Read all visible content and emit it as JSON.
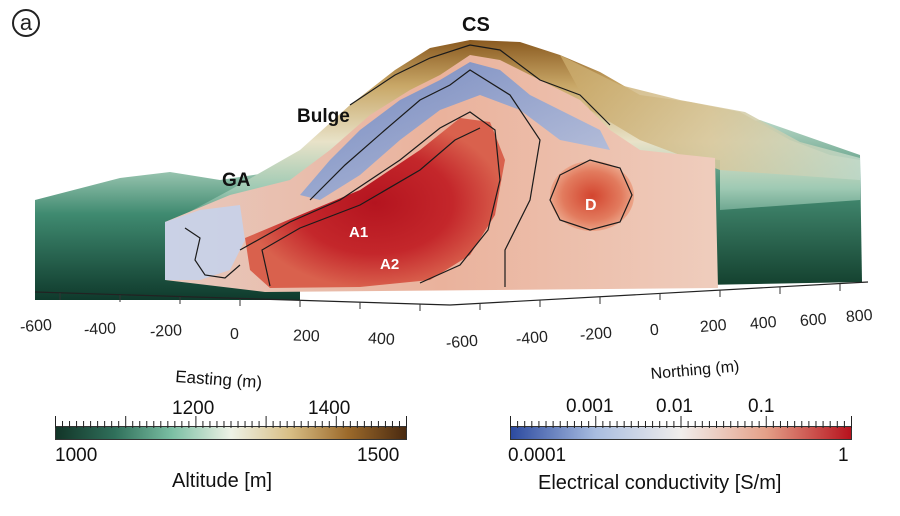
{
  "panel_label": "a",
  "labels": {
    "summit": "CS",
    "bulge": "Bulge",
    "ga": "GA",
    "a1": "A1",
    "a2": "A2",
    "d": "D"
  },
  "easting_axis": {
    "title": "Easting (m)",
    "ticks": [
      "-600",
      "-400",
      "-200",
      "0",
      "200",
      "400"
    ]
  },
  "northing_axis": {
    "title": "Northing (m)",
    "ticks": [
      "-600",
      "-400",
      "-200",
      "0",
      "200",
      "400",
      "600",
      "800"
    ]
  },
  "altitude_bar": {
    "title": "Altitude [m]",
    "min_label": "1000",
    "max_label": "1500",
    "inner_labels": [
      "1200",
      "1400"
    ],
    "colors": [
      "#123528",
      "#2f6f5a",
      "#7cc0a4",
      "#eef2e6",
      "#d8bf86",
      "#9c6a2b",
      "#4a2a10"
    ]
  },
  "conductivity_bar": {
    "title": "Electrical conductivity [S/m]",
    "min_label": "0.0001",
    "max_label": "1",
    "inner_labels": [
      "0.001",
      "0.01",
      "0.1"
    ],
    "colors": [
      "#2c4aa0",
      "#a9bde0",
      "#f1eeec",
      "#e4a088",
      "#b7121d"
    ]
  }
}
